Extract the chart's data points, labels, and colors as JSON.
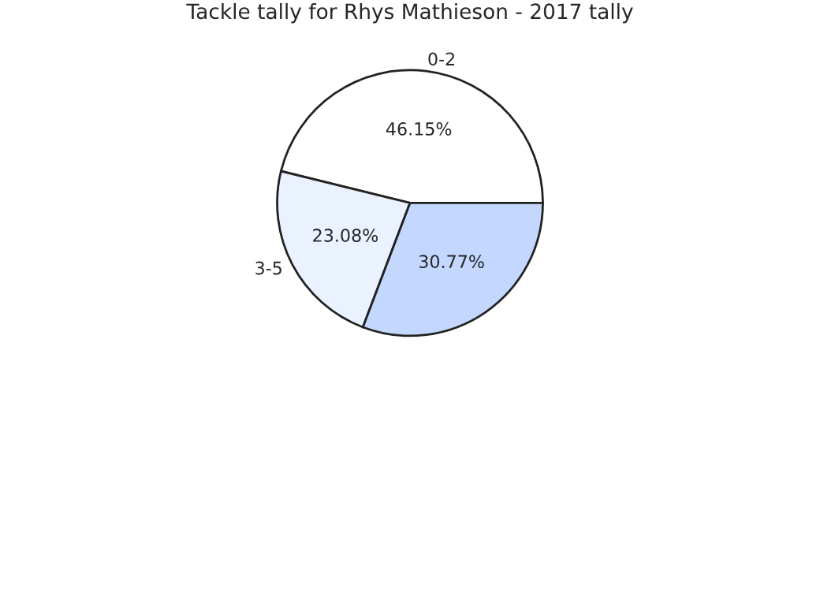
{
  "chart_data": {
    "type": "pie",
    "title": "Tackle tally for Rhys Mathieson - 2017 tally",
    "categories": [
      "0-2",
      "3-5",
      null
    ],
    "values": [
      46.15,
      23.08,
      30.77
    ],
    "value_labels": [
      "46.15%",
      "23.08%",
      "30.77%"
    ],
    "colors": [
      "#ffffff",
      "#eaf1ff",
      "#c3d7ff"
    ]
  }
}
